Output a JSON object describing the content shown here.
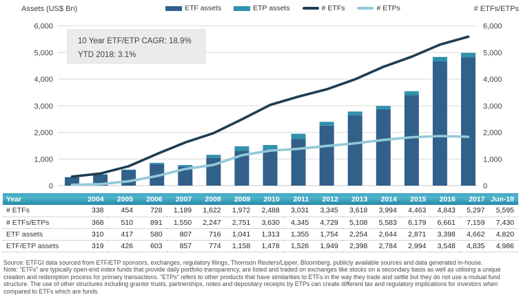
{
  "header": {
    "left_axis_title": "Assets (US$ Bn)",
    "right_axis_title": "# ETFs/ETPs",
    "legend": [
      {
        "label": "ETF assets",
        "type": "bar",
        "color": "#31608a"
      },
      {
        "label": "ETP assets",
        "type": "bar",
        "color": "#3191ad"
      },
      {
        "label": "# ETFs",
        "type": "line",
        "color": "#1e3d52"
      },
      {
        "label": "# ETPs",
        "type": "line",
        "color": "#94c9d9"
      }
    ]
  },
  "annotation": {
    "line1": "10 Year ETF/ETP CAGR: 18.9%",
    "line2": "YTD 2018: 3.1%"
  },
  "colors": {
    "etf_bar": "#31608a",
    "etp_bar": "#3191ad",
    "etfs_line": "#1e3d52",
    "etps_line": "#94c9d9",
    "gridline": "#d9d9d9",
    "zeroline": "#c6c6c6",
    "table_header_teal": "#2f9ab5",
    "annotation_bg": "#ebebeb"
  },
  "chart_data": {
    "type": "combo_stacked_bar_line",
    "title": "",
    "categories": [
      "2004",
      "2005",
      "2006",
      "2007",
      "2008",
      "2009",
      "2010",
      "2011",
      "2012",
      "2013",
      "2014",
      "2015",
      "2016",
      "2017",
      "Jun-18"
    ],
    "left_axis": {
      "title": "Assets (US$ Bn)",
      "range": [
        0,
        6000
      ],
      "tick_step": 1000
    },
    "right_axis": {
      "title": "# ETFs/ETPs",
      "range": [
        0,
        6000
      ],
      "tick_step": 1000
    },
    "gridlines": true,
    "legend_position": "top",
    "series": [
      {
        "name": "ETF assets",
        "type": "bar",
        "stack": "assets",
        "axis": "left",
        "color": "#31608a",
        "values": [
          310,
          417,
          580,
          807,
          716,
          1041,
          1313,
          1355,
          1754,
          2254,
          2644,
          2871,
          3398,
          4662,
          4820
        ]
      },
      {
        "name": "ETP assets",
        "type": "bar",
        "stack": "assets",
        "axis": "left",
        "color": "#3191ad",
        "values": [
          9,
          9,
          23,
          50,
          58,
          117,
          165,
          171,
          195,
          144,
          140,
          123,
          150,
          173,
          166
        ]
      },
      {
        "name": "# ETFs",
        "type": "line",
        "axis": "right",
        "color": "#1e3d52",
        "values": [
          338,
          454,
          728,
          1189,
          1622,
          1972,
          2488,
          3031,
          3345,
          3618,
          3994,
          4463,
          4843,
          5297,
          5595
        ]
      },
      {
        "name": "# ETPs",
        "type": "line",
        "axis": "right",
        "color": "#94c9d9",
        "values": [
          30,
          56,
          163,
          361,
          625,
          779,
          1142,
          1314,
          1384,
          1490,
          1589,
          1716,
          1818,
          1862,
          1835
        ]
      }
    ]
  },
  "table": {
    "header": [
      "Year",
      "2004",
      "2005",
      "2006",
      "2007",
      "2008",
      "2009",
      "2010",
      "2011",
      "2012",
      "2013",
      "2014",
      "2015",
      "2016",
      "2017",
      "Jun-18"
    ],
    "rows": [
      {
        "label": "# ETFs",
        "values": [
          "338",
          "454",
          "728",
          "1,189",
          "1,622",
          "1,972",
          "2,488",
          "3,031",
          "3,345",
          "3,618",
          "3,994",
          "4,463",
          "4,843",
          "5,297",
          "5,595"
        ]
      },
      {
        "label": "# ETFs/ETPs",
        "values": [
          "368",
          "510",
          "891",
          "1,550",
          "2,247",
          "2,751",
          "3,630",
          "4,345",
          "4,729",
          "5,108",
          "5,583",
          "6,179",
          "6,661",
          "7,159",
          "7,430"
        ]
      },
      {
        "label": "ETF assets",
        "values": [
          "310",
          "417",
          "580",
          "807",
          "716",
          "1,041",
          "1,313",
          "1,355",
          "1,754",
          "2,254",
          "2,644",
          "2,871",
          "3,398",
          "4,662",
          "4,820"
        ]
      },
      {
        "label": "ETF/ETP assets",
        "values": [
          "319",
          "426",
          "603",
          "857",
          "774",
          "1,158",
          "1,478",
          "1,526",
          "1,949",
          "2,398",
          "2,784",
          "2,994",
          "3,548",
          "4,835",
          "4,986"
        ]
      }
    ]
  },
  "footer": {
    "source": "Source: ETFGI data sourced from ETF/ETP sponsors, exchanges, regulatory filings, Thomson Reuters/Lipper, Bloomberg, publicly available sources and data generated in-house.",
    "note": "Note: “ETFs” are typically open-end index funds that provide daily portfolio transparency, are listed and traded on exchanges like stocks on a secondary basis as well as utilising a unique creation and redemption process for primary transactions. “ETPs” refers to other products that have similarities to ETFs in the way they trade and settle but they do not use a mutual fund structure. The use of other structures including grantor trusts, partnerships, notes and depositary receipts by ETPs can create different tax and regulatory implications for investors when compared to ETFs which are funds."
  }
}
